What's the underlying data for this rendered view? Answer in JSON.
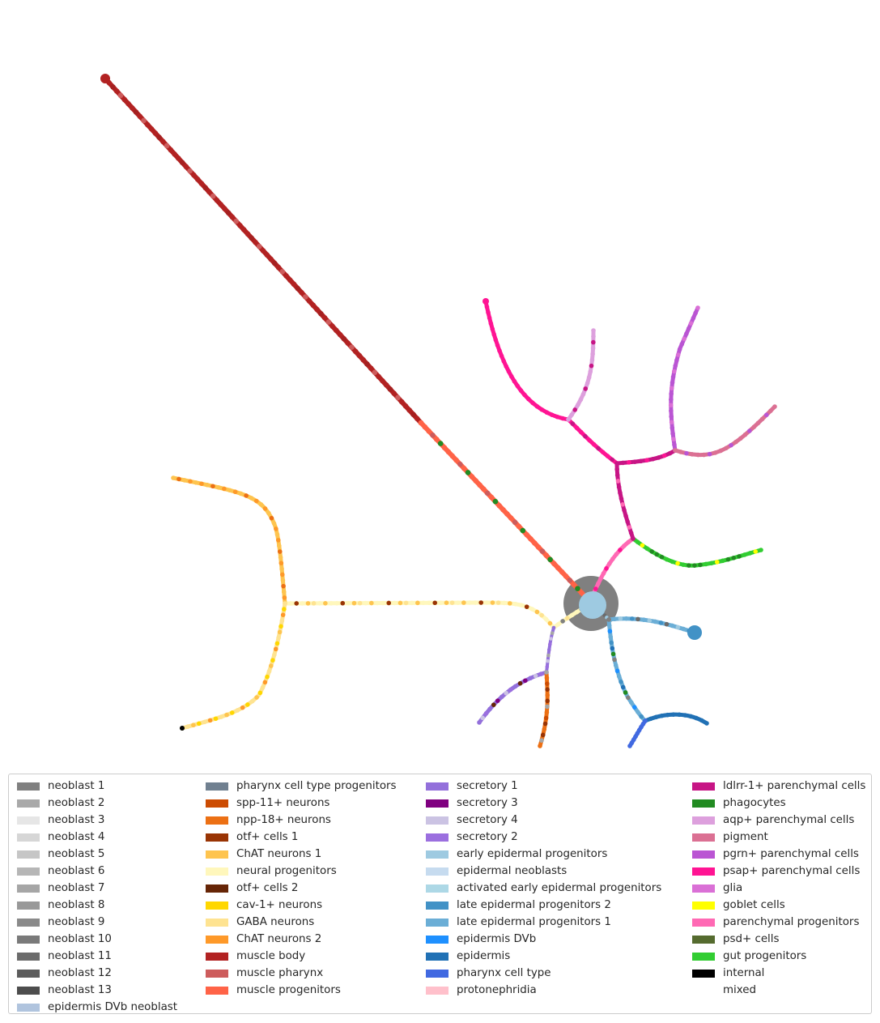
{
  "legend": {
    "columns": [
      [
        {
          "label": "neoblast 1",
          "color": "#808080"
        },
        {
          "label": "neoblast 2",
          "color": "#a9a9a9"
        },
        {
          "label": "neoblast 3",
          "color": "#e6e6e6"
        },
        {
          "label": "neoblast 4",
          "color": "#d6d6d6"
        },
        {
          "label": "neoblast 5",
          "color": "#c6c6c6"
        },
        {
          "label": "neoblast 6",
          "color": "#b6b6b6"
        },
        {
          "label": "neoblast 7",
          "color": "#a6a6a6"
        },
        {
          "label": "neoblast 8",
          "color": "#999999"
        },
        {
          "label": "neoblast 9",
          "color": "#8a8a8a"
        },
        {
          "label": "neoblast 10",
          "color": "#7a7a7a"
        },
        {
          "label": "neoblast 11",
          "color": "#6b6b6b"
        },
        {
          "label": "neoblast 12",
          "color": "#5c5c5c"
        },
        {
          "label": "neoblast 13",
          "color": "#4d4d4d"
        },
        {
          "label": "epidermis DVb neoblast",
          "color": "#b0c4de"
        }
      ],
      [
        {
          "label": "pharynx cell type progenitors",
          "color": "#708090"
        },
        {
          "label": "spp-11+ neurons",
          "color": "#cc4c02"
        },
        {
          "label": "npp-18+ neurons",
          "color": "#ec7014"
        },
        {
          "label": "otf+ cells 1",
          "color": "#993404"
        },
        {
          "label": "ChAT neurons 1",
          "color": "#fec44f"
        },
        {
          "label": "neural progenitors",
          "color": "#fff7bc"
        },
        {
          "label": "otf+ cells 2",
          "color": "#662506"
        },
        {
          "label": "cav-1+ neurons",
          "color": "#ffd700"
        },
        {
          "label": "GABA neurons",
          "color": "#fee391"
        },
        {
          "label": "ChAT neurons 2",
          "color": "#fe9929"
        },
        {
          "label": "muscle body",
          "color": "#b22222"
        },
        {
          "label": "muscle pharynx",
          "color": "#cd5c5c"
        },
        {
          "label": "muscle progenitors",
          "color": "#ff6347"
        }
      ],
      [
        {
          "label": "secretory 1",
          "color": "#9370db"
        },
        {
          "label": "secretory 3",
          "color": "#800080"
        },
        {
          "label": "secretory 4",
          "color": "#cbc3e3"
        },
        {
          "label": "secretory 2",
          "color": "#9b6fdf"
        },
        {
          "label": "early epidermal progenitors",
          "color": "#9ecae1"
        },
        {
          "label": "epidermal neoblasts",
          "color": "#c6dbef"
        },
        {
          "label": "activated early epidermal progenitors",
          "color": "#add8e6"
        },
        {
          "label": "late epidermal progenitors 2",
          "color": "#4292c6"
        },
        {
          "label": "late epidermal progenitors 1",
          "color": "#6baed6"
        },
        {
          "label": "epidermis DVb",
          "color": "#1e90ff"
        },
        {
          "label": "epidermis",
          "color": "#2171b5"
        },
        {
          "label": "pharynx cell type",
          "color": "#4169e1"
        },
        {
          "label": "protonephridia",
          "color": "#ffc0cb"
        }
      ],
      [
        {
          "label": "ldlrr-1+ parenchymal cells",
          "color": "#c71585"
        },
        {
          "label": "phagocytes",
          "color": "#228b22"
        },
        {
          "label": "aqp+ parenchymal cells",
          "color": "#dda0dd"
        },
        {
          "label": "pigment",
          "color": "#db7093"
        },
        {
          "label": "pgrn+ parenchymal cells",
          "color": "#ba55d3"
        },
        {
          "label": "psap+ parenchymal cells",
          "color": "#ff1493"
        },
        {
          "label": "glia",
          "color": "#da70d6"
        },
        {
          "label": "goblet cells",
          "color": "#ffff00"
        },
        {
          "label": "parenchymal progenitors",
          "color": "#ff69b4"
        },
        {
          "label": "psd+ cells",
          "color": "#556b2f"
        },
        {
          "label": "gut progenitors",
          "color": "#32cd32"
        },
        {
          "label": "internal",
          "color": "#000000"
        },
        {
          "label": "mixed",
          "color": "#ffffff"
        }
      ]
    ]
  }
}
